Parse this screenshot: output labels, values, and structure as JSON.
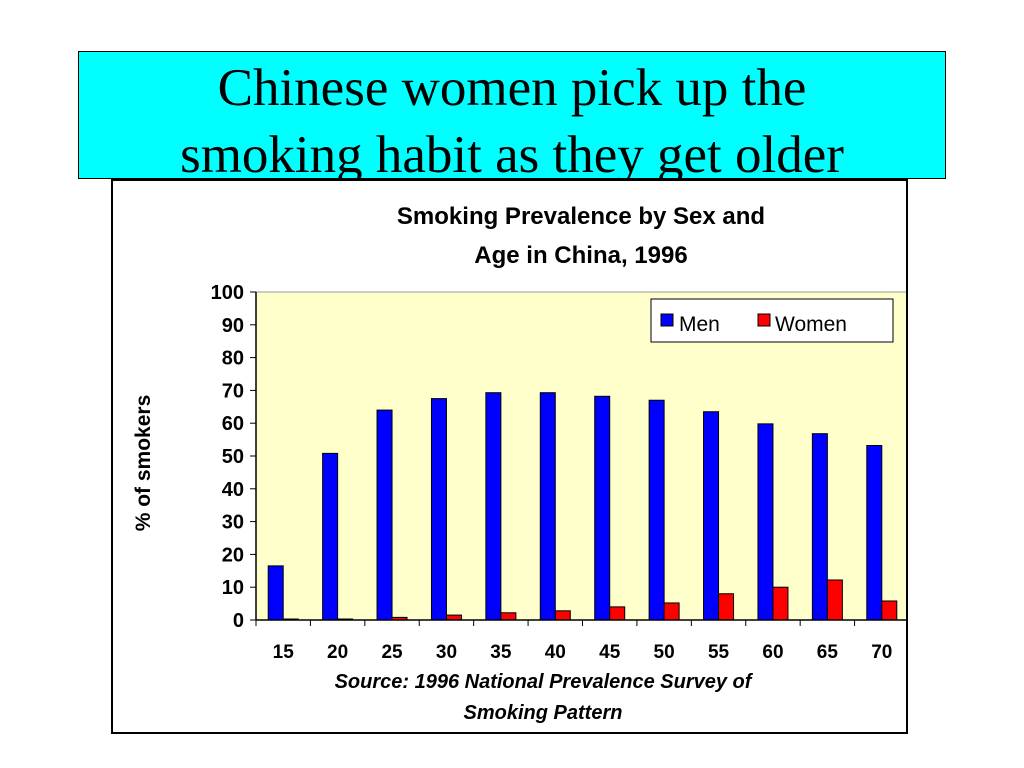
{
  "slide": {
    "title_line_1": "Chinese women pick up the",
    "title_line_2": "smoking habit as they get older"
  },
  "chart_data": {
    "type": "bar",
    "title_lines": [
      "Smoking Prevalence by Sex and",
      "Age in China, 1996"
    ],
    "xlabel": "",
    "ylabel": "% of smokers",
    "categories": [
      "15",
      "20",
      "25",
      "30",
      "35",
      "40",
      "45",
      "50",
      "55",
      "60",
      "65",
      "70"
    ],
    "series": [
      {
        "name": "Men",
        "color": "#0000ff",
        "values": [
          16.5,
          50.8,
          64.0,
          67.5,
          69.3,
          69.3,
          68.2,
          67.0,
          63.5,
          59.8,
          56.8,
          53.2
        ]
      },
      {
        "name": "Women",
        "color": "#ff0000",
        "values": [
          0.3,
          0.3,
          0.8,
          1.5,
          2.2,
          2.8,
          4.0,
          5.2,
          8.0,
          10.0,
          12.2,
          5.8
        ]
      }
    ],
    "ylim": [
      0,
      100
    ],
    "yticks": [
      0,
      10,
      20,
      30,
      40,
      50,
      60,
      70,
      80,
      90,
      100
    ],
    "grid": false,
    "legend_position": "top-right",
    "plot_background": "#ffffcc",
    "source_lines": [
      "Source: 1996 National Prevalence Survey of",
      "Smoking Pattern"
    ]
  }
}
